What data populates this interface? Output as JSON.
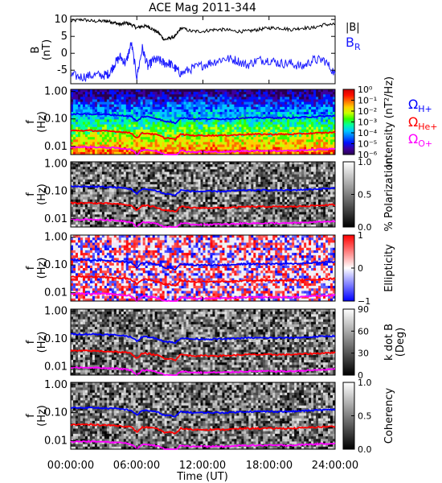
{
  "title": "ACE Mag 2011-344",
  "x_axis": {
    "label": "Time (UT)",
    "ticks": [
      "00:00:00",
      "06:00:00",
      "12:00:00",
      "18:00:00",
      "24:00:00"
    ]
  },
  "colors": {
    "B_mag": "#000000",
    "B_R": "#1a1aff",
    "H": "#0000ff",
    "He": "#ff0000",
    "O": "#ff00ff"
  },
  "chart_data": [
    {
      "type": "line",
      "panel": "magnetic_field",
      "ylabel": [
        "B",
        "(nT)"
      ],
      "ylim": [
        -9,
        11
      ],
      "yticks": [
        "10",
        "5",
        "0",
        "-5"
      ],
      "ytick_values": [
        10,
        5,
        0,
        -5
      ],
      "x_hours": [
        0,
        1,
        2,
        3,
        3.5,
        4,
        4.5,
        5,
        5.5,
        6,
        6.5,
        7,
        7.5,
        8,
        8.5,
        9,
        9.5,
        10,
        11,
        12,
        13,
        14,
        15,
        16,
        17,
        18,
        19,
        20,
        21,
        22,
        23,
        24
      ],
      "series": [
        {
          "name": "|B|",
          "values": [
            9.5,
            10,
            9.5,
            9.5,
            9.5,
            9,
            8.5,
            9,
            8.5,
            7.5,
            8,
            8,
            7,
            6,
            4,
            4.5,
            5,
            7.5,
            6.5,
            6.5,
            7,
            7,
            6.5,
            6.5,
            7,
            7.5,
            7.5,
            7,
            7.5,
            7.5,
            8.5,
            8.5
          ]
        },
        {
          "name": "B_R",
          "label_main": "B",
          "label_sub": "R",
          "values": [
            -6.5,
            -7,
            -6.5,
            -6.5,
            -6,
            -3,
            -1,
            -3,
            3,
            -7,
            1.5,
            -4,
            -2,
            -2,
            -3,
            -3,
            -4.5,
            -6,
            -4.5,
            -3.5,
            -2.5,
            -1.5,
            -2,
            -3.5,
            -2,
            -2,
            -3,
            -3,
            -4,
            -2,
            -2,
            -6
          ]
        }
      ]
    },
    {
      "type": "heatmap",
      "panel": "intensity",
      "ylabel": [
        "f",
        "(Hz)"
      ],
      "yticks": [
        "1.00",
        "0.10",
        "0.01"
      ],
      "colorbar_label": "Intensity (nT²/Hz)",
      "colorbar_ticks": [
        "10⁰",
        "10⁻¹",
        "10⁻²",
        "10⁻³",
        "10⁻⁴",
        "10⁻⁵",
        "10⁻⁶"
      ]
    },
    {
      "type": "heatmap",
      "panel": "polarization",
      "ylabel": [
        "f",
        "(Hz)"
      ],
      "yticks": [
        "1.00",
        "0.10",
        "0.01"
      ],
      "colorbar_label": "% Polarization",
      "colorbar_ticks": [
        "1.0",
        "0.5",
        "0.0"
      ]
    },
    {
      "type": "heatmap",
      "panel": "ellipticity",
      "ylabel": [
        "f",
        "(Hz)"
      ],
      "yticks": [
        "1.00",
        "0.10",
        "0.01"
      ],
      "colorbar_label": "Ellipticity",
      "colorbar_ticks": [
        "1",
        "0",
        "−1"
      ]
    },
    {
      "type": "heatmap",
      "panel": "k_dot_b",
      "ylabel": [
        "f",
        "(Hz)"
      ],
      "yticks": [
        "1.00",
        "0.10",
        "0.01"
      ],
      "colorbar_label": "k dot B",
      "colorbar_label2": "(Deg)",
      "colorbar_ticks": [
        "90",
        "60",
        "30",
        "0"
      ]
    },
    {
      "type": "heatmap",
      "panel": "coherency",
      "ylabel": [
        "f",
        "(Hz)"
      ],
      "yticks": [
        "1.00",
        "0.10",
        "0.01"
      ],
      "colorbar_label": "Coherency",
      "colorbar_ticks": [
        "1.0",
        "0.5",
        "0.0"
      ]
    }
  ],
  "gyrofrequency_legend": [
    {
      "symbol": "Ω",
      "sub": "H+",
      "color": "#0000ff"
    },
    {
      "symbol": "Ω",
      "sub": "He+",
      "color": "#ff0000"
    },
    {
      "symbol": "Ω",
      "sub": "O+",
      "color": "#ff00ff"
    }
  ],
  "gyrofrequency_lines": {
    "x_hours": [
      0,
      2,
      4,
      5,
      5.5,
      6,
      6.5,
      7,
      8,
      8.5,
      9,
      9.5,
      10,
      11,
      12,
      14,
      16,
      18,
      20,
      22,
      24
    ],
    "H_hz": [
      0.15,
      0.15,
      0.14,
      0.13,
      0.12,
      0.08,
      0.12,
      0.12,
      0.1,
      0.08,
      0.08,
      0.07,
      0.11,
      0.1,
      0.1,
      0.1,
      0.11,
      0.11,
      0.11,
      0.12,
      0.13
    ]
  }
}
